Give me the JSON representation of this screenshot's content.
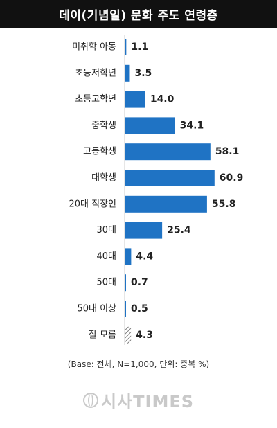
{
  "chart_data": {
    "type": "bar",
    "orientation": "horizontal",
    "title": "데이(기념일) 문화 주도 연령층",
    "categories": [
      "미취학 아동",
      "초등저학년",
      "초등고학년",
      "중학생",
      "고등학생",
      "대학생",
      "20대 직장인",
      "30대",
      "40대",
      "50대",
      "50대 이상",
      "잘 모름"
    ],
    "values": [
      1.1,
      3.5,
      14.0,
      34.1,
      58.1,
      60.9,
      55.8,
      25.4,
      4.4,
      0.7,
      0.5,
      4.3
    ],
    "value_labels": [
      "1.1",
      "3.5",
      "14.0",
      "34.1",
      "58.1",
      "60.9",
      "55.8",
      "25.4",
      "4.4",
      "0.7",
      "0.5",
      "4.3"
    ],
    "bar_color": "#1f73c4",
    "hatched_category": "잘 모름",
    "xlim": [
      0,
      61
    ],
    "grid": false,
    "legend": "none"
  },
  "footnote": "(Base: 전체, N=1,000, 단위: 중복 %)",
  "watermark": "시사TIMES",
  "watermark_icon": "globe-icon"
}
